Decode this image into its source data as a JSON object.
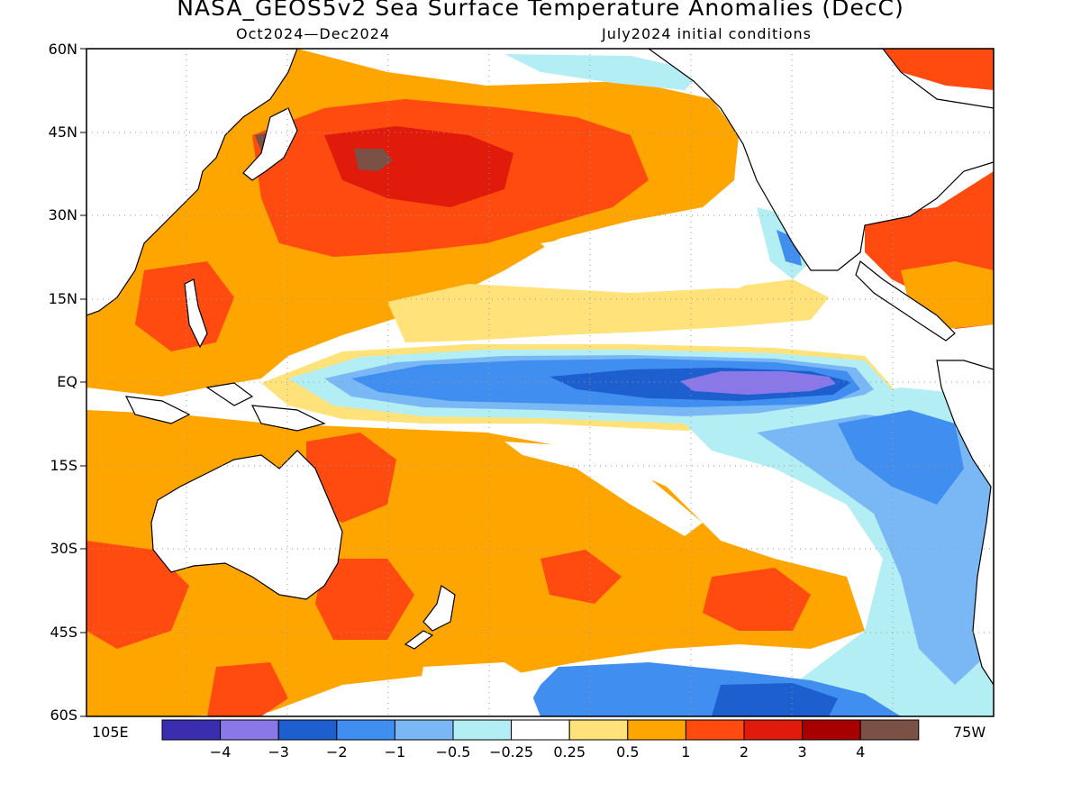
{
  "title": "NASA_GEOS5v2 Sea Surface Temperature Anomalies (DecC)",
  "subtitle_left": "Oct2024—Dec2024",
  "subtitle_right": "July2024 initial conditions",
  "lat_labels": [
    "60N",
    "45N",
    "30N",
    "15N",
    "EQ",
    "15S",
    "30S",
    "45S",
    "60S"
  ],
  "lon_labels": {
    "west": "105E",
    "east": "75W"
  },
  "colorbar": {
    "bins": [
      {
        "color": "#3a2db0"
      },
      {
        "color": "#8b78e8"
      },
      {
        "color": "#1e5fd0"
      },
      {
        "color": "#3f8ef0"
      },
      {
        "color": "#7ab8f5"
      },
      {
        "color": "#b2eef4"
      },
      {
        "color": "#ffffff"
      },
      {
        "color": "#ffe27a"
      },
      {
        "color": "#ffa500"
      },
      {
        "color": "#ff4a10"
      },
      {
        "color": "#e01b0b"
      },
      {
        "color": "#a80000"
      },
      {
        "color": "#7b5045"
      }
    ],
    "tick_labels": [
      "−4",
      "−3",
      "−2",
      "−1",
      "−0.5",
      "−0.25",
      "0.25",
      "0.5",
      "1",
      "2",
      "3",
      "4"
    ]
  },
  "colors": {
    "orange": "#ffa500",
    "light_orange": "#ffe27a",
    "red": "#ff4a10",
    "dark_red": "#e01b0b",
    "brown": "#7b5045",
    "light_blue": "#b2eef4",
    "mid_blue": "#7ab8f5",
    "blue": "#3f8ef0",
    "dark_blue": "#1e5fd0",
    "purple": "#8b78e8"
  }
}
